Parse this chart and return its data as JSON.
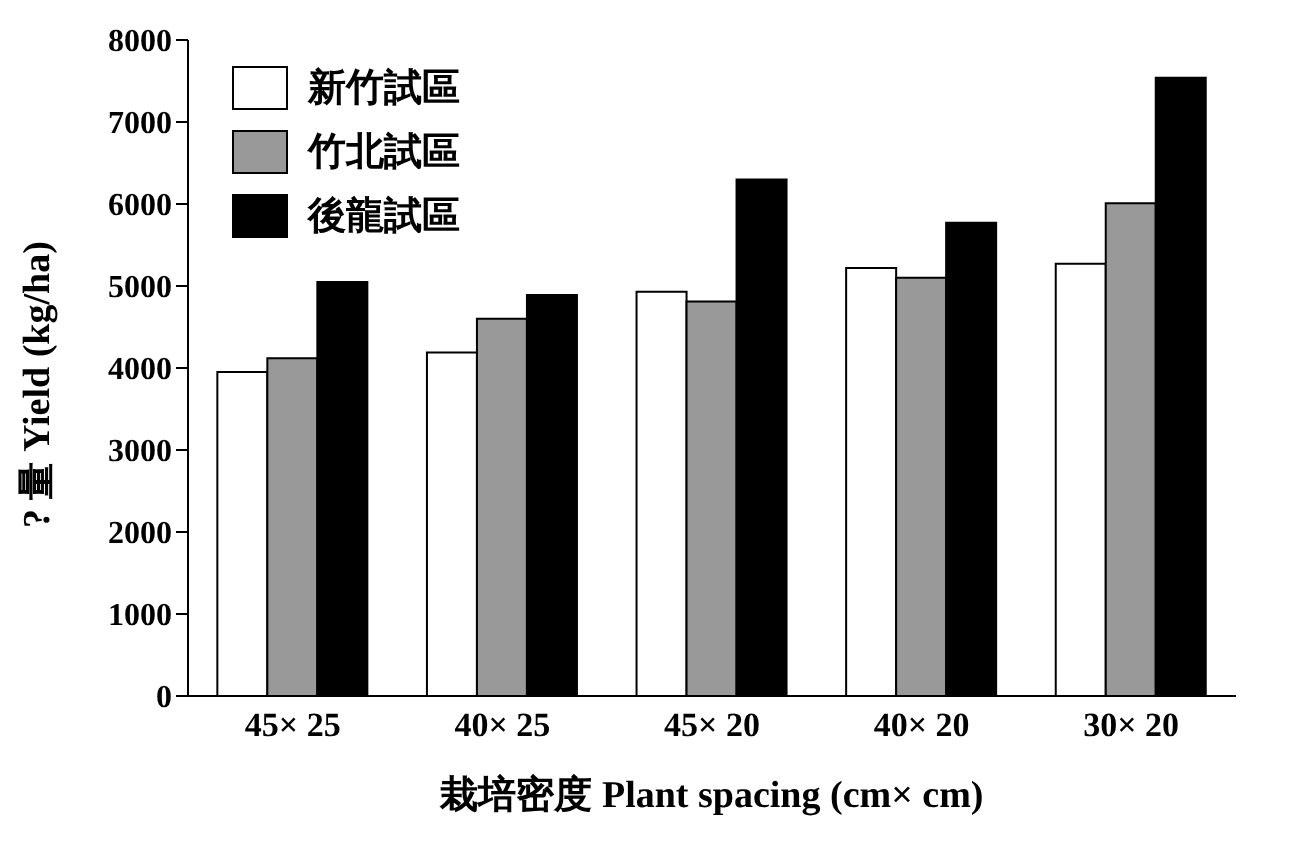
{
  "chart_data": {
    "type": "bar",
    "xlabel": "栽培密度 Plant spacing (cm× cm)",
    "ylabel": "? 量 Yield (kg/ha)",
    "categories": [
      "45× 25",
      "40× 25",
      "45× 20",
      "40× 20",
      "30× 20"
    ],
    "series": [
      {
        "name": "新竹試區",
        "color": "#ffffff",
        "values": [
          3950,
          4190,
          4930,
          5220,
          5270
        ]
      },
      {
        "name": "竹北試區",
        "color": "#999999",
        "values": [
          4120,
          4600,
          4810,
          5100,
          6010
        ]
      },
      {
        "name": "後龍試區",
        "color": "#000000",
        "values": [
          5050,
          4890,
          6300,
          5770,
          7540
        ]
      }
    ],
    "ylim": [
      0,
      8000
    ],
    "yticks": [
      0,
      1000,
      2000,
      3000,
      4000,
      5000,
      6000,
      7000,
      8000
    ],
    "grid": false,
    "legend": "top left"
  }
}
